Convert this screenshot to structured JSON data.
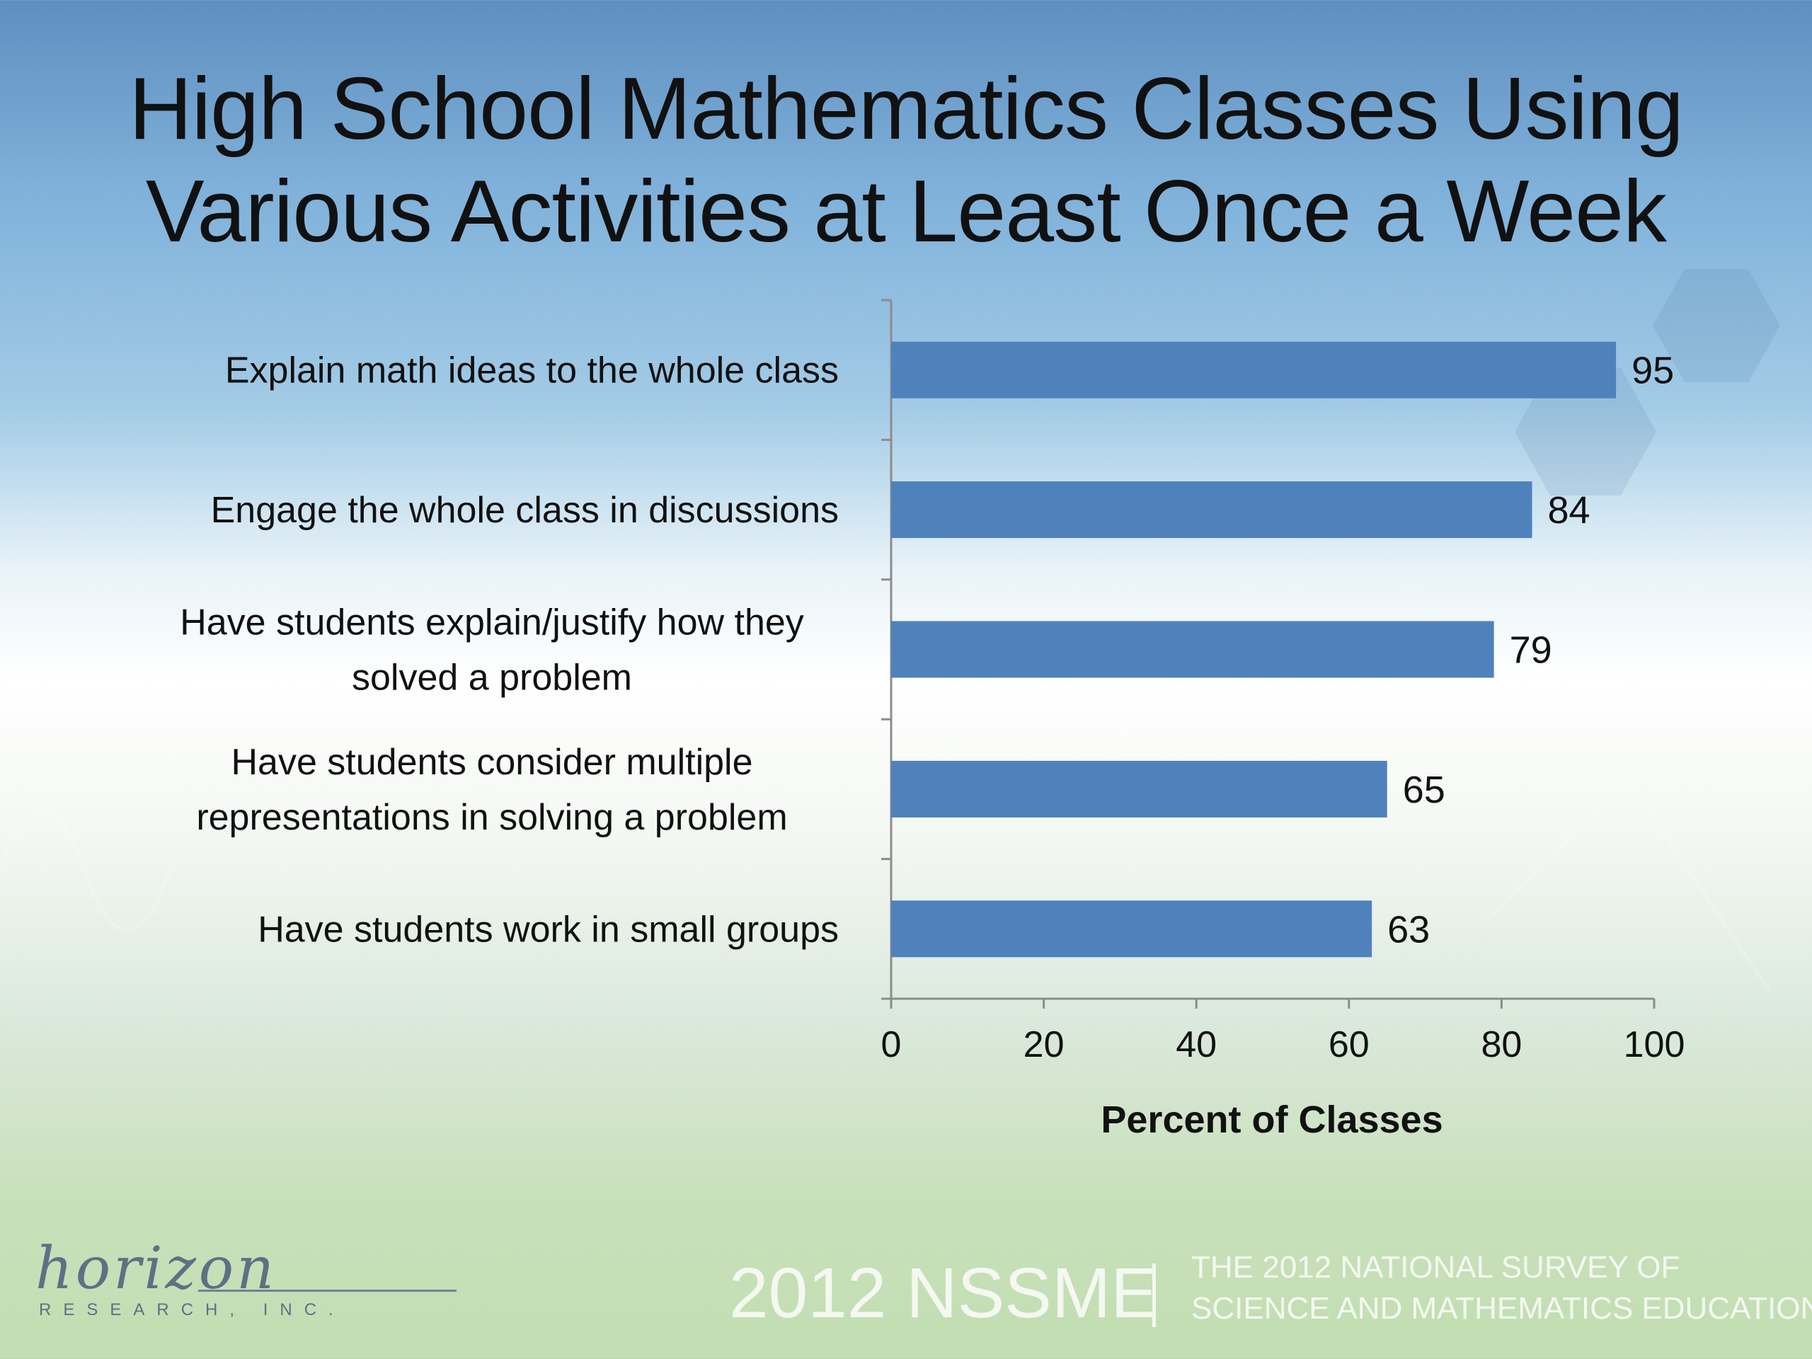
{
  "slide": {
    "title_lines": [
      "High School Mathematics Classes Using",
      "Various Activities at Least Once a Week"
    ]
  },
  "chart_data": {
    "type": "bar",
    "orientation": "horizontal",
    "title": "High School Mathematics Classes Using Various Activities at Least Once a Week",
    "categories": [
      "Explain math ideas to the whole class",
      "Engage the whole class in discussions",
      "Have students explain/justify how they solved a problem",
      "Have students consider multiple representations in solving a problem",
      "Have students work in small groups"
    ],
    "category_label_lines": [
      [
        "Explain math ideas to the whole class"
      ],
      [
        "Engage the whole class in discussions"
      ],
      [
        "Have students explain/justify how they",
        "solved a problem"
      ],
      [
        "Have students consider multiple",
        "representations in solving a problem"
      ],
      [
        "Have students work in small groups"
      ]
    ],
    "values": [
      95,
      84,
      79,
      65,
      63
    ],
    "data_labels": [
      "95",
      "84",
      "79",
      "65",
      "63"
    ],
    "xlabel": "Percent of Classes",
    "ylabel": "",
    "xlim": [
      0,
      100
    ],
    "x_ticks": [
      0,
      20,
      40,
      60,
      80,
      100
    ],
    "grid": false,
    "legend": "none",
    "bar_color": "#4f81bd"
  },
  "footer": {
    "logo_script": "horizon",
    "logo_sub": "RESEARCH, INC.",
    "brand": "2012 NSSME",
    "survey_lines": [
      "THE 2012 NATIONAL SURVEY OF",
      "SCIENCE AND MATHEMATICS EDUCATION"
    ]
  }
}
